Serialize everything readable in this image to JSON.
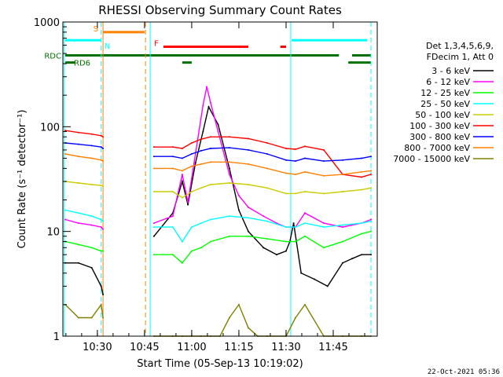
{
  "chart_data": {
    "type": "line",
    "title": "RHESSI Observing Summary Count Rates",
    "xlabel": "Start Time (05-Sep-13 10:19:02)",
    "ylabel": "Count Rate (s⁻¹ detector⁻¹)",
    "y_scale": "log",
    "ylim": [
      1,
      1000
    ],
    "xlim": [
      10.3172,
      11.9833
    ],
    "x_ticks": [
      {
        "label": "10:30",
        "value": 10.5
      },
      {
        "label": "10:45",
        "value": 10.75
      },
      {
        "label": "11:00",
        "value": 11.0
      },
      {
        "label": "11:15",
        "value": 11.25
      },
      {
        "label": "11:30",
        "value": 11.5
      },
      {
        "label": "11:45",
        "value": 11.75
      }
    ],
    "y_ticks": [
      {
        "label": "1",
        "value": 1
      },
      {
        "label": "10",
        "value": 10
      },
      {
        "label": "100",
        "value": 100
      },
      {
        "label": "1000",
        "value": 1000
      }
    ],
    "legend": {
      "placement": "right",
      "header": [
        "Det 1,3,4,5,6,9,",
        "FDecim 1, Att 0"
      ],
      "entries": [
        {
          "label": "3 - 6 keV",
          "color": "#000000"
        },
        {
          "label": "6 - 12 keV",
          "color": "#ff00ff"
        },
        {
          "label": "12 - 25 keV",
          "color": "#00ff00"
        },
        {
          "label": "25 - 50 keV",
          "color": "#00ffff"
        },
        {
          "label": "50 - 100 keV",
          "color": "#cccc00"
        },
        {
          "label": "100 - 300 keV",
          "color": "#ff0000"
        },
        {
          "label": "300 - 800 keV",
          "color": "#0000ff"
        },
        {
          "label": "800 - 7000 keV",
          "color": "#ff8000"
        },
        {
          "label": "7000 - 15000 keV",
          "color": "#808000"
        }
      ]
    },
    "series": [
      {
        "name": "3 - 6 keV",
        "color": "#000000",
        "x": [
          10.33,
          10.4,
          10.47,
          10.52,
          10.53,
          10.75,
          10.8,
          10.9,
          10.95,
          10.98,
          11.02,
          11.06,
          11.09,
          11.14,
          11.2,
          11.25,
          11.3,
          11.38,
          11.45,
          11.5,
          11.52,
          11.54,
          11.58,
          11.65,
          11.72,
          11.8,
          11.85,
          11.9,
          11.95
        ],
        "y": [
          5,
          5,
          4.5,
          3,
          2.5,
          null,
          9,
          15,
          30,
          18,
          45,
          90,
          155,
          105,
          40,
          16,
          10,
          7,
          6,
          6.5,
          8,
          12,
          4,
          3.5,
          3,
          5,
          5.5,
          6,
          6
        ]
      },
      {
        "name": "6 - 12 keV",
        "color": "#ff00ff",
        "x": [
          10.33,
          10.4,
          10.47,
          10.52,
          10.53,
          10.75,
          10.8,
          10.9,
          10.95,
          10.98,
          11.02,
          11.06,
          11.08,
          11.1,
          11.14,
          11.2,
          11.25,
          11.3,
          11.38,
          11.45,
          11.5,
          11.55,
          11.6,
          11.7,
          11.8,
          11.9,
          11.95
        ],
        "y": [
          13,
          12,
          11.5,
          11,
          10.5,
          null,
          12,
          14,
          35,
          19,
          55,
          160,
          240,
          170,
          90,
          35,
          22,
          17,
          14,
          12,
          11,
          11,
          15,
          12,
          11,
          12,
          13
        ]
      },
      {
        "name": "12 - 25 keV",
        "color": "#00ff00",
        "x": [
          10.33,
          10.4,
          10.47,
          10.52,
          10.53,
          10.75,
          10.8,
          10.9,
          10.95,
          11.0,
          11.05,
          11.1,
          11.2,
          11.3,
          11.4,
          11.5,
          11.55,
          11.6,
          11.7,
          11.8,
          11.9,
          11.95
        ],
        "y": [
          8,
          7.5,
          7,
          6.5,
          6.5,
          null,
          6,
          6,
          5,
          6.5,
          7,
          8,
          9,
          9,
          8.5,
          8,
          8,
          9,
          7,
          8,
          9.5,
          10
        ]
      },
      {
        "name": "25 - 50 keV",
        "color": "#00ffff",
        "x": [
          10.33,
          10.4,
          10.47,
          10.52,
          10.53,
          10.75,
          10.8,
          10.9,
          10.95,
          11.0,
          11.05,
          11.1,
          11.2,
          11.3,
          11.4,
          11.5,
          11.55,
          11.6,
          11.7,
          11.8,
          11.9,
          11.95
        ],
        "y": [
          16,
          15,
          14,
          13,
          12.5,
          null,
          11,
          11,
          8,
          11,
          12,
          13,
          14,
          13.5,
          12.5,
          11,
          11,
          12,
          11,
          11.5,
          12,
          12.5
        ]
      },
      {
        "name": "50 - 100 keV",
        "color": "#cccc00",
        "x": [
          10.33,
          10.4,
          10.47,
          10.52,
          10.53,
          10.75,
          10.8,
          10.9,
          10.95,
          11.0,
          11.05,
          11.1,
          11.2,
          11.3,
          11.4,
          11.5,
          11.55,
          11.6,
          11.7,
          11.8,
          11.9,
          11.95
        ],
        "y": [
          30,
          29,
          28,
          27.5,
          27,
          null,
          24,
          24,
          21,
          24,
          26,
          28,
          29,
          28,
          26,
          23,
          23,
          24,
          23,
          24,
          25,
          26
        ]
      },
      {
        "name": "100 - 300 keV",
        "color": "#ff0000",
        "x": [
          10.33,
          10.4,
          10.47,
          10.52,
          10.53,
          10.75,
          10.8,
          10.9,
          10.95,
          11.0,
          11.05,
          11.1,
          11.2,
          11.3,
          11.4,
          11.5,
          11.55,
          11.6,
          11.7,
          11.8,
          11.9,
          11.95
        ],
        "y": [
          92,
          88,
          85,
          82,
          80,
          null,
          64,
          64,
          62,
          70,
          76,
          80,
          80,
          77,
          70,
          62,
          61,
          65,
          60,
          35,
          33,
          35
        ]
      },
      {
        "name": "300 - 800 keV",
        "color": "#0000ff",
        "x": [
          10.33,
          10.4,
          10.47,
          10.52,
          10.53,
          10.75,
          10.8,
          10.9,
          10.95,
          11.0,
          11.05,
          11.1,
          11.2,
          11.3,
          11.4,
          11.5,
          11.55,
          11.6,
          11.7,
          11.8,
          11.9,
          11.95
        ],
        "y": [
          70,
          68,
          66,
          64,
          62,
          null,
          52,
          52,
          50,
          55,
          59,
          62,
          63,
          60,
          55,
          48,
          47,
          50,
          47,
          48,
          50,
          52
        ]
      },
      {
        "name": "800 - 7000 keV",
        "color": "#ff8000",
        "x": [
          10.33,
          10.4,
          10.47,
          10.52,
          10.53,
          10.75,
          10.8,
          10.9,
          10.95,
          11.0,
          11.05,
          11.1,
          11.2,
          11.3,
          11.4,
          11.5,
          11.55,
          11.6,
          11.7,
          11.8,
          11.9,
          11.95
        ],
        "y": [
          55,
          52,
          50,
          48,
          47,
          null,
          40,
          40,
          38,
          42,
          44,
          46,
          46,
          44,
          40,
          36,
          35,
          37,
          34,
          35,
          37,
          38
        ]
      },
      {
        "name": "7000 - 15000 keV",
        "color": "#808000",
        "x": [
          10.33,
          10.4,
          10.47,
          10.52,
          10.53,
          10.75,
          10.8,
          10.9,
          10.95,
          11.0,
          11.05,
          11.1,
          11.15,
          11.2,
          11.25,
          11.3,
          11.35,
          11.4,
          11.5,
          11.55,
          11.6,
          11.7,
          11.8,
          11.9,
          11.95
        ],
        "y": [
          2,
          1.5,
          1.5,
          2,
          1.5,
          null,
          1,
          1,
          1,
          1,
          1,
          1,
          1,
          1.5,
          2,
          1.2,
          1,
          1,
          1,
          1.5,
          2,
          1,
          1,
          1,
          1
        ]
      }
    ],
    "flags": [
      {
        "label": "S",
        "color": "#ff8000",
        "y": 800,
        "x_start": 10.53,
        "x_end": 10.75
      },
      {
        "label": "N",
        "color": "#00ffff",
        "y": 670,
        "x_start": 10.33,
        "x_end": 10.52
      },
      {
        "label": "",
        "color": "#00ffff",
        "y": 670,
        "x_start": 11.53,
        "x_end": 11.93
      },
      {
        "label": "F",
        "color": "#ff0000",
        "y": 580,
        "x_start": 10.85,
        "x_end": 11.3
      },
      {
        "label": "",
        "color": "#ff0000",
        "y": 580,
        "x_start": 11.47,
        "x_end": 11.5
      },
      {
        "label": "RDC",
        "color": "#007000",
        "y": 480,
        "x_start": 10.33,
        "x_end": 11.78
      },
      {
        "label": "",
        "color": "#007000",
        "y": 480,
        "x_start": 11.85,
        "x_end": 11.95
      },
      {
        "label": "RD6",
        "color": "#007000",
        "y": 410,
        "x_start": 10.33,
        "x_end": 10.38
      },
      {
        "label": "",
        "color": "#007000",
        "y": 410,
        "x_start": 10.95,
        "x_end": 11.0
      },
      {
        "label": "",
        "color": "#007000",
        "y": 410,
        "x_start": 11.83,
        "x_end": 11.95
      }
    ],
    "vertical_markers": [
      {
        "x": 10.325,
        "color": "#00ffff",
        "style": "solid"
      },
      {
        "x": 10.52,
        "color": "#00ffff",
        "style": "dashed"
      },
      {
        "x": 10.53,
        "color": "#ff8000",
        "style": "solid"
      },
      {
        "x": 10.755,
        "color": "#ff8000",
        "style": "dashed"
      },
      {
        "x": 10.78,
        "color": "#00ffff",
        "style": "solid"
      },
      {
        "x": 11.525,
        "color": "#00ffff",
        "style": "solid"
      },
      {
        "x": 11.95,
        "color": "#00ffff",
        "style": "dashed"
      }
    ],
    "grid": false
  },
  "footer": {
    "timestamp": "22-Oct-2021 05:36"
  }
}
